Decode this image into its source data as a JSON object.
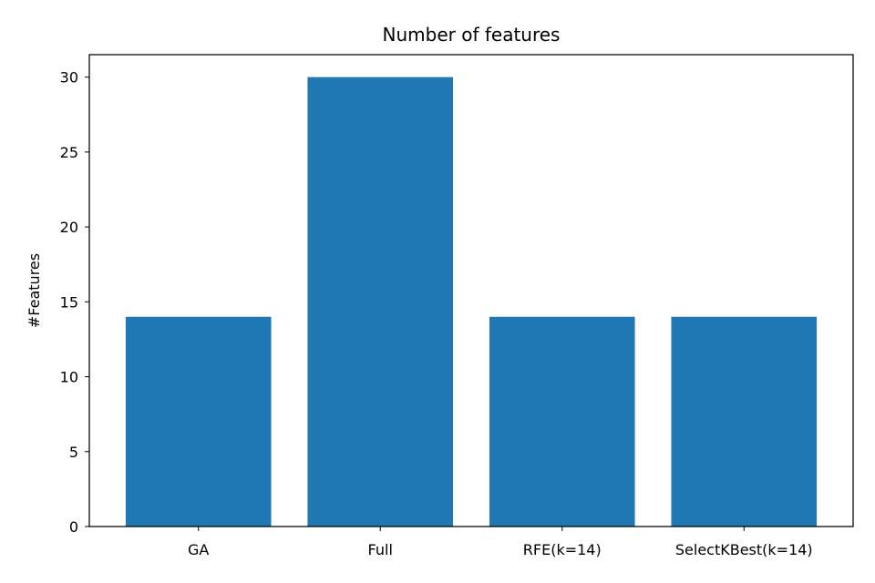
{
  "chart_data": {
    "type": "bar",
    "title": "Number of features",
    "xlabel": "",
    "ylabel": "#Features",
    "categories": [
      "GA",
      "Full",
      "RFE(k=14)",
      "SelectKBest(k=14)"
    ],
    "values": [
      14,
      30,
      14,
      14
    ],
    "ylim": [
      0,
      31.5
    ],
    "yticks": [
      0,
      5,
      10,
      15,
      20,
      25,
      30
    ],
    "grid": false,
    "bar_color": "#1f77b4"
  }
}
